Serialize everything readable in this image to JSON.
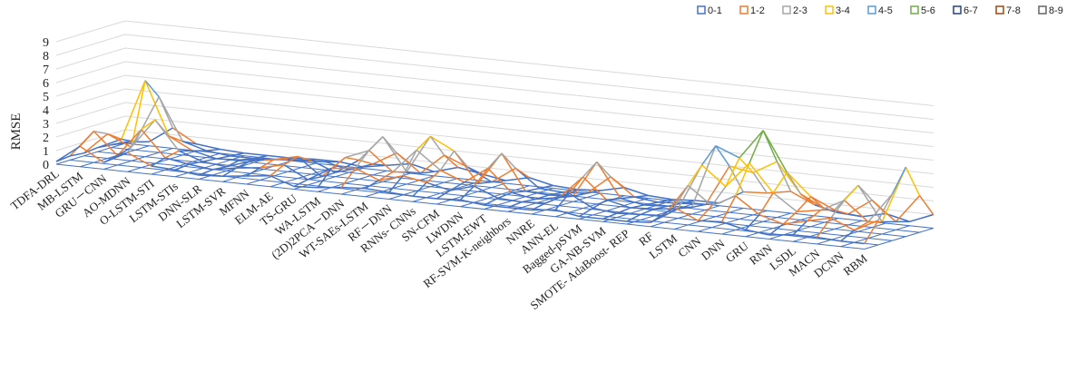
{
  "chart_data": {
    "type": "surface-3d",
    "ylabel": "RMSE",
    "zlim": [
      0,
      9
    ],
    "z_ticks": [
      "0",
      "1",
      "2",
      "3",
      "4",
      "5",
      "6",
      "7",
      "8",
      "9"
    ],
    "legend_position": "top-right",
    "categories": [
      "TDFA-DRL",
      "MB-LSTM",
      "GRU－CNN",
      "AO-MDNN",
      "O-LSTM-STI",
      "LSTM-STIs",
      "DNN-SLR",
      "LSTM-SVR",
      "MFNN",
      "ELM-AE",
      "TS-GRU",
      "WA-LSTM",
      "(2D)2PCA－DNN",
      "WT-SAEs-LSTM",
      "RF－DNN",
      "RNNs- CNNs",
      "SN-CFM",
      "LWDNN",
      "LSTM-EWT",
      "RF-SVM-K-neighbors",
      "NNRE",
      "ANN-EL",
      "Bagged-pSVM",
      "GA-NB-SVM",
      "SMOTE- AdaBoost- REP",
      "RF",
      "LSTM",
      "CNN",
      "DNN",
      "GRU",
      "RNN",
      "LSDL",
      "MACN",
      "DCNN",
      "RBM"
    ],
    "depth_rows": 6,
    "row_values": [
      [
        0.2,
        1.5,
        0.5,
        1.4,
        0.6,
        0.5,
        0.3,
        0.4,
        0.6,
        0.8,
        0.2,
        0.3,
        0.5,
        0.6,
        0.5,
        0.4,
        0.4,
        0.5,
        0.3,
        0.3,
        0.3,
        0.5,
        0.2,
        0.2,
        0.2,
        0.3,
        1.6,
        0.8,
        0.9,
        0.5,
        0.3,
        0.5,
        0.5,
        0.4,
        0.4
      ],
      [
        0.3,
        2.3,
        0.7,
        2.8,
        0.9,
        0.6,
        0.4,
        0.7,
        0.9,
        1.3,
        0.4,
        1.4,
        1.6,
        0.9,
        1.4,
        1.1,
        0.7,
        1.2,
        0.5,
        0.4,
        0.5,
        1.4,
        0.5,
        0.3,
        0.4,
        0.5,
        2.9,
        1.6,
        2.5,
        1.3,
        0.8,
        1.2,
        1.6,
        0.9,
        1.8
      ],
      [
        0.2,
        1.8,
        1.0,
        3.2,
        1.1,
        0.5,
        0.3,
        0.9,
        1.2,
        1.6,
        0.3,
        1.9,
        2.6,
        1.2,
        3.0,
        1.7,
        1.0,
        2.2,
        0.6,
        0.3,
        0.6,
        2.3,
        0.8,
        0.4,
        0.5,
        0.7,
        4.1,
        2.7,
        4.6,
        2.6,
        1.4,
        1.7,
        2.6,
        1.2,
        3.4
      ],
      [
        0.3,
        1.1,
        5.6,
        1.7,
        0.8,
        0.4,
        0.5,
        0.7,
        0.9,
        1.0,
        0.3,
        1.4,
        3.3,
        0.9,
        3.7,
        2.8,
        0.6,
        3.0,
        0.4,
        0.3,
        0.4,
        3.1,
        0.6,
        0.3,
        0.4,
        0.5,
        5.2,
        4.5,
        6.7,
        3.8,
        2.2,
        1.4,
        3.4,
        0.9,
        5.1
      ],
      [
        0.2,
        0.6,
        4.1,
        1.0,
        0.5,
        0.3,
        0.3,
        0.4,
        0.5,
        0.6,
        0.2,
        0.8,
        1.8,
        0.5,
        2.0,
        1.3,
        0.4,
        1.6,
        0.3,
        0.2,
        0.3,
        1.7,
        0.4,
        0.2,
        0.3,
        0.4,
        3.4,
        3.1,
        4.1,
        1.9,
        1.0,
        0.8,
        2.0,
        0.6,
        2.7
      ],
      [
        0.1,
        0.3,
        1.5,
        0.5,
        0.3,
        0.2,
        0.2,
        0.2,
        0.3,
        0.3,
        0.1,
        0.4,
        0.7,
        0.3,
        0.8,
        0.5,
        0.2,
        0.6,
        0.2,
        0.1,
        0.2,
        0.6,
        0.2,
        0.1,
        0.2,
        0.2,
        1.2,
        1.3,
        1.6,
        0.8,
        0.4,
        0.3,
        0.7,
        0.3,
        1.0
      ]
    ],
    "legend": [
      {
        "label": "0-1",
        "color": "#4472c4"
      },
      {
        "label": "1-2",
        "color": "#ed7d31"
      },
      {
        "label": "2-3",
        "color": "#a5a5a5"
      },
      {
        "label": "3-4",
        "color": "#ffc000"
      },
      {
        "label": "4-5",
        "color": "#5b9bd5"
      },
      {
        "label": "5-6",
        "color": "#70ad47"
      },
      {
        "label": "6-7",
        "color": "#264478"
      },
      {
        "label": "7-8",
        "color": "#9e480e"
      },
      {
        "label": "8-9",
        "color": "#636363"
      }
    ]
  }
}
